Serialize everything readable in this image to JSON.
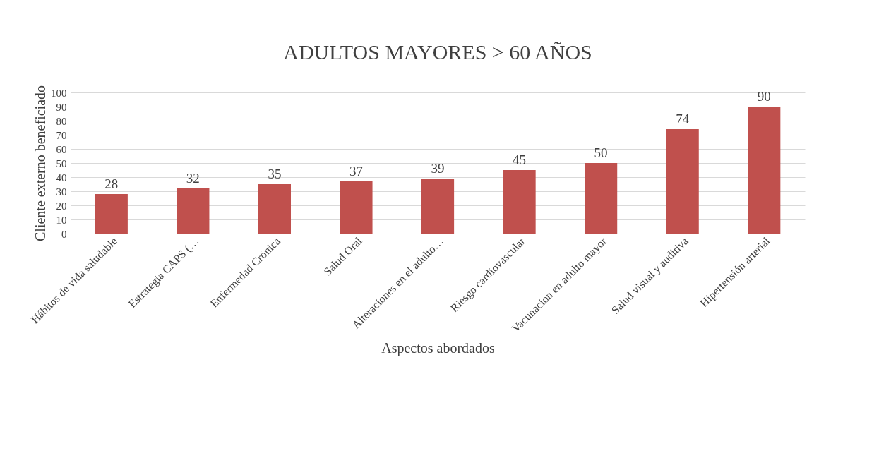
{
  "chart_data": {
    "type": "bar",
    "title": "ADULTOS MAYORES > 60 AÑOS",
    "xlabel": "Aspectos abordados",
    "ylabel": "Cliente externo beneficiado",
    "categories": [
      "Hábitos de vida saludable",
      "Estrategia CAPS (…",
      "Enfermedad Crónica",
      "Salud Oral",
      "Alteraciones en el adulto…",
      "Riesgo cardiovascular",
      "Vacunacion en adulto mayor",
      "Salud visual y auditiva",
      "Hipertensión arterial"
    ],
    "values": [
      28,
      32,
      35,
      37,
      39,
      45,
      50,
      74,
      90
    ],
    "color": "#c0504d",
    "ylim": [
      0,
      100
    ],
    "yticks": [
      0,
      10,
      20,
      30,
      40,
      50,
      60,
      70,
      80,
      90,
      100
    ],
    "grid": "y",
    "data_labels": true
  }
}
